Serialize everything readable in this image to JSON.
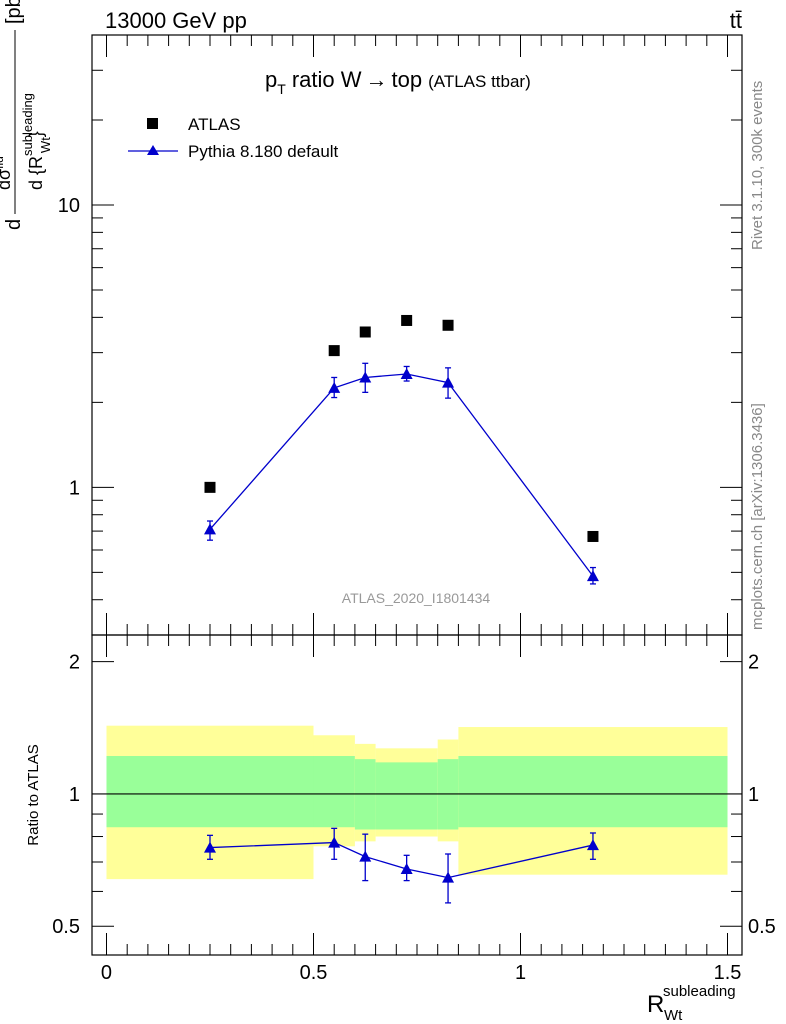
{
  "header": {
    "left": "13000 GeV pp",
    "right": "tt̄"
  },
  "side_labels": {
    "rivet": "Rivet 3.1.10,  300k events",
    "mcplots": "mcplots.cern.ch [arXiv:1306.3436]"
  },
  "chart_data": [
    {
      "type": "scatter",
      "panel": "main",
      "title": "p_T ratio W→ top",
      "title_parts": {
        "p": "p",
        "sub": "T",
        "rest": "ratio W",
        "arrow": "→",
        "top": "top"
      },
      "subtitle": "(ATLAS ttbar)",
      "ylabel": "d σ^{fid} / d {R_{Wt}^{subleading}} [pb]",
      "ylabel_parts": {
        "pb": "[pb]"
      },
      "xlim": [
        -0.035,
        1.535
      ],
      "ylim": [
        0.3,
        40
      ],
      "yscale": "log",
      "yticks": [
        1,
        10
      ],
      "yticklabels": [
        "1",
        "10"
      ],
      "watermark": "ATLAS_2020_I1801434",
      "legend_position": "top-left",
      "series": [
        {
          "name": "ATLAS",
          "marker": "square",
          "color": "#000000",
          "x": [
            0.25,
            0.55,
            0.625,
            0.725,
            0.825,
            1.175
          ],
          "y": [
            1.0,
            3.05,
            3.55,
            3.9,
            3.75,
            0.67
          ]
        },
        {
          "name": "Pythia 8.180 default",
          "marker": "triangle",
          "color": "#0000cc",
          "line": true,
          "x": [
            0.25,
            0.55,
            0.625,
            0.725,
            0.825,
            1.175
          ],
          "y": [
            0.71,
            2.25,
            2.45,
            2.52,
            2.35,
            0.485
          ],
          "yerr_low": [
            0.65,
            2.08,
            2.17,
            2.38,
            2.07,
            0.455
          ],
          "yerr_high": [
            0.76,
            2.45,
            2.75,
            2.68,
            2.65,
            0.52
          ]
        }
      ]
    },
    {
      "type": "scatter",
      "panel": "ratio",
      "ylabel": "Ratio to ATLAS",
      "xlabel": "R_{Wt}^{subleading}",
      "xlabel_parts": {
        "main": "R",
        "sub": "Wt",
        "sup": "subleading"
      },
      "xlim": [
        -0.035,
        1.535
      ],
      "ylim": [
        0.43,
        2.3
      ],
      "yscale": "log",
      "yticks": [
        0.5,
        1,
        2
      ],
      "yticklabels": [
        "0.5",
        "1",
        "2"
      ],
      "xticks": [
        0,
        0.5,
        1,
        1.5
      ],
      "xticklabels": [
        "0",
        "0.5",
        "1",
        "1.5"
      ],
      "reference_line": 1,
      "bands": {
        "edges": [
          0,
          0.5,
          0.6,
          0.65,
          0.8,
          0.85,
          1.5
        ],
        "inner_low": [
          0.84,
          0.84,
          0.83,
          0.83,
          0.83,
          0.84
        ],
        "inner_high": [
          1.22,
          1.22,
          1.2,
          1.18,
          1.2,
          1.22
        ],
        "outer_low": [
          0.64,
          0.76,
          0.78,
          0.8,
          0.78,
          0.655
        ],
        "outer_high": [
          1.43,
          1.36,
          1.3,
          1.27,
          1.33,
          1.42
        ],
        "inner_color": "#99ff99",
        "outer_color": "#ffff99"
      },
      "series": [
        {
          "name": "Pythia 8.180 default",
          "color": "#0000cc",
          "marker": "triangle",
          "x": [
            0.25,
            0.55,
            0.625,
            0.725,
            0.825,
            1.175
          ],
          "y": [
            0.755,
            0.775,
            0.72,
            0.675,
            0.645,
            0.765
          ],
          "yerr_low": [
            0.71,
            0.71,
            0.635,
            0.635,
            0.565,
            0.71
          ],
          "yerr_high": [
            0.805,
            0.835,
            0.81,
            0.725,
            0.73,
            0.815
          ]
        }
      ]
    }
  ]
}
